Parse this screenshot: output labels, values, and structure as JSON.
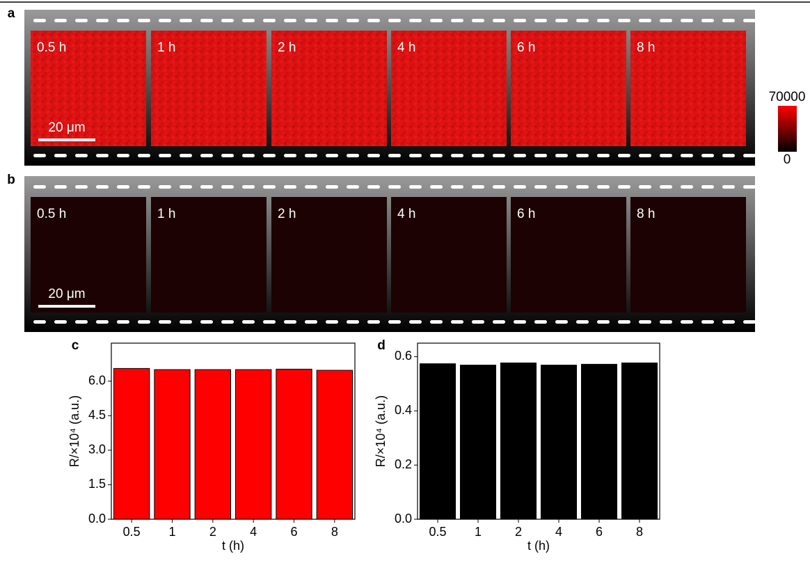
{
  "panel_a": {
    "label": "a",
    "frames": [
      "0.5 h",
      "1 h",
      "2 h",
      "4 h",
      "6 h",
      "8 h"
    ],
    "scale_bar": "20 μm"
  },
  "panel_b": {
    "label": "b",
    "frames": [
      "0.5 h",
      "1 h",
      "2 h",
      "4 h",
      "6 h",
      "8 h"
    ],
    "scale_bar": "20 μm"
  },
  "colorbar": {
    "max": 70000,
    "min": 0
  },
  "chart_data": [
    {
      "type": "bar",
      "panel_label": "c",
      "categories": [
        "0.5",
        "1",
        "2",
        "4",
        "6",
        "8"
      ],
      "values": [
        6.55,
        6.5,
        6.5,
        6.5,
        6.52,
        6.47
      ],
      "color": "#ff0000",
      "x_label": "t (h)",
      "y_label": "R/×10⁴ (a.u.)",
      "ylim": [
        0,
        7.65
      ],
      "yticks": [
        {
          "value": 0,
          "label": "0.0"
        },
        1.5,
        {
          "value": 3,
          "label": "3.0"
        },
        4.5,
        {
          "value": 6,
          "label": "6.0"
        }
      ]
    },
    {
      "type": "bar",
      "panel_label": "d",
      "categories": [
        "0.5",
        "1",
        "2",
        "4",
        "6",
        "8"
      ],
      "values": [
        0.574,
        0.569,
        0.577,
        0.569,
        0.572,
        0.577
      ],
      "color": "#000000",
      "x_label": "t (h)",
      "y_label": "R/×10⁴ (a.u.)",
      "ylim": [
        0,
        0.65
      ],
      "yticks": [
        {
          "value": 0,
          "label": "0.0"
        },
        0.2,
        0.4,
        0.6
      ]
    }
  ]
}
